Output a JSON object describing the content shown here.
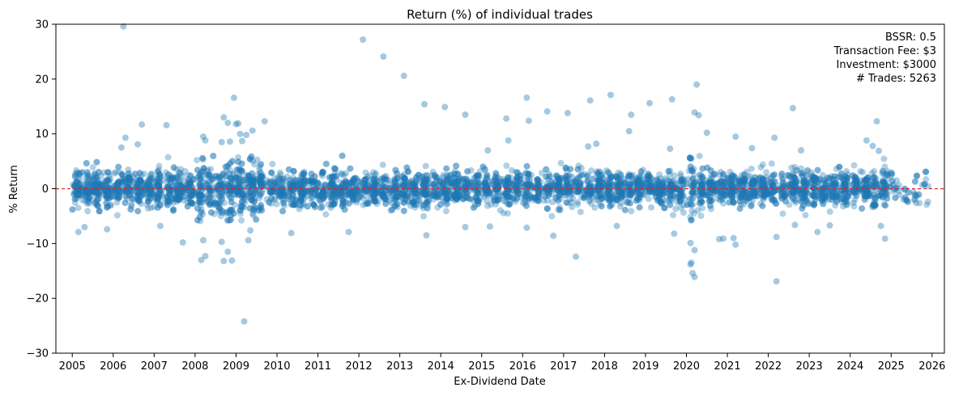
{
  "chart_data": {
    "type": "scatter",
    "title": "Return (%) of individual trades",
    "xlabel": "Ex-Dividend Date",
    "ylabel": "% Return",
    "xlim": [
      2004.6,
      2026.3
    ],
    "ylim": [
      -30,
      30
    ],
    "x_ticks": [
      2005,
      2006,
      2007,
      2008,
      2009,
      2010,
      2011,
      2012,
      2013,
      2014,
      2015,
      2016,
      2017,
      2018,
      2019,
      2020,
      2021,
      2022,
      2023,
      2024,
      2025,
      2026
    ],
    "x_tick_labels": [
      "2005",
      "2006",
      "2007",
      "2008",
      "2009",
      "2010",
      "2011",
      "2012",
      "2013",
      "2014",
      "2015",
      "2016",
      "2017",
      "2018",
      "2019",
      "2020",
      "2021",
      "2022",
      "2023",
      "2024",
      "2025",
      "2026"
    ],
    "y_ticks": [
      -30,
      -20,
      -10,
      0,
      10,
      20,
      30
    ],
    "y_tick_labels": [
      "−30",
      "−20",
      "−10",
      "0",
      "10",
      "20",
      "30"
    ],
    "reference_line": {
      "y": 0,
      "style": "dashed",
      "color": "#d62728"
    },
    "grid": false,
    "point_color": "#1f77b4",
    "point_alpha": 0.35,
    "annotations": [
      "BSSR: 0.5",
      "Transaction Fee: $3",
      "Investment: $3000",
      "# Trades: 5263"
    ],
    "annotation_position": "top-right",
    "dense_band_trades": 5263,
    "outliers": [
      {
        "x": 2006.25,
        "y": 29.6
      },
      {
        "x": 2012.1,
        "y": 27.2
      },
      {
        "x": 2012.6,
        "y": 24.1
      },
      {
        "x": 2013.1,
        "y": 20.6
      },
      {
        "x": 2020.25,
        "y": 19.0
      },
      {
        "x": 2018.15,
        "y": 17.1
      },
      {
        "x": 2016.1,
        "y": 16.6
      },
      {
        "x": 2008.95,
        "y": 16.6
      },
      {
        "x": 2019.65,
        "y": 16.3
      },
      {
        "x": 2017.65,
        "y": 16.1
      },
      {
        "x": 2019.1,
        "y": 15.6
      },
      {
        "x": 2013.6,
        "y": 15.4
      },
      {
        "x": 2014.1,
        "y": 14.9
      },
      {
        "x": 2022.6,
        "y": 14.7
      },
      {
        "x": 2016.6,
        "y": 14.1
      },
      {
        "x": 2020.2,
        "y": 13.9
      },
      {
        "x": 2017.1,
        "y": 13.8
      },
      {
        "x": 2014.6,
        "y": 13.5
      },
      {
        "x": 2018.65,
        "y": 13.5
      },
      {
        "x": 2020.3,
        "y": 13.4
      },
      {
        "x": 2008.7,
        "y": 13.0
      },
      {
        "x": 2015.6,
        "y": 12.8
      },
      {
        "x": 2016.15,
        "y": 12.4
      },
      {
        "x": 2009.7,
        "y": 12.3
      },
      {
        "x": 2024.65,
        "y": 12.3
      },
      {
        "x": 2008.8,
        "y": 12.0
      },
      {
        "x": 2009.05,
        "y": 11.9
      },
      {
        "x": 2009.0,
        "y": 11.8
      },
      {
        "x": 2006.7,
        "y": 11.7
      },
      {
        "x": 2007.3,
        "y": 11.6
      },
      {
        "x": 2009.4,
        "y": 10.6
      },
      {
        "x": 2018.6,
        "y": 10.5
      },
      {
        "x": 2020.5,
        "y": 10.2
      },
      {
        "x": 2009.1,
        "y": 10.0
      },
      {
        "x": 2009.25,
        "y": 9.8
      },
      {
        "x": 2008.2,
        "y": 9.5
      },
      {
        "x": 2021.2,
        "y": 9.5
      },
      {
        "x": 2022.15,
        "y": 9.3
      },
      {
        "x": 2006.3,
        "y": 9.3
      },
      {
        "x": 2024.4,
        "y": 8.8
      },
      {
        "x": 2008.25,
        "y": 8.8
      },
      {
        "x": 2015.65,
        "y": 8.8
      },
      {
        "x": 2009.15,
        "y": 8.7
      },
      {
        "x": 2008.65,
        "y": 8.5
      },
      {
        "x": 2017.8,
        "y": 8.2
      },
      {
        "x": 2006.6,
        "y": 8.1
      },
      {
        "x": 2008.85,
        "y": 8.6
      },
      {
        "x": 2024.55,
        "y": 7.8
      },
      {
        "x": 2017.6,
        "y": 7.7
      },
      {
        "x": 2006.2,
        "y": 7.5
      },
      {
        "x": 2021.6,
        "y": 7.4
      },
      {
        "x": 2019.6,
        "y": 7.3
      },
      {
        "x": 2022.8,
        "y": 7.0
      },
      {
        "x": 2024.7,
        "y": 6.9
      },
      {
        "x": 2015.15,
        "y": 7.0
      },
      {
        "x": 2009.2,
        "y": -24.2
      },
      {
        "x": 2022.2,
        "y": -16.9
      },
      {
        "x": 2020.2,
        "y": -16.1
      },
      {
        "x": 2020.15,
        "y": -15.4
      },
      {
        "x": 2020.1,
        "y": -13.8
      },
      {
        "x": 2020.12,
        "y": -13.5
      },
      {
        "x": 2008.7,
        "y": -13.2
      },
      {
        "x": 2008.9,
        "y": -13.1
      },
      {
        "x": 2008.15,
        "y": -13.0
      },
      {
        "x": 2017.3,
        "y": -12.4
      },
      {
        "x": 2008.25,
        "y": -12.3
      },
      {
        "x": 2008.8,
        "y": -11.5
      },
      {
        "x": 2020.2,
        "y": -11.2
      },
      {
        "x": 2021.2,
        "y": -10.2
      },
      {
        "x": 2020.1,
        "y": -9.9
      },
      {
        "x": 2007.7,
        "y": -9.8
      },
      {
        "x": 2008.65,
        "y": -9.7
      },
      {
        "x": 2008.2,
        "y": -9.4
      },
      {
        "x": 2009.3,
        "y": -9.4
      },
      {
        "x": 2020.9,
        "y": -9.1
      },
      {
        "x": 2024.85,
        "y": -9.1
      },
      {
        "x": 2021.15,
        "y": -9.0
      },
      {
        "x": 2020.8,
        "y": -9.2
      },
      {
        "x": 2022.2,
        "y": -8.8
      },
      {
        "x": 2013.65,
        "y": -8.5
      },
      {
        "x": 2016.75,
        "y": -8.6
      },
      {
        "x": 2019.7,
        "y": -8.2
      },
      {
        "x": 2010.35,
        "y": -8.1
      },
      {
        "x": 2005.15,
        "y": -7.9
      },
      {
        "x": 2011.75,
        "y": -7.9
      },
      {
        "x": 2023.2,
        "y": -7.9
      },
      {
        "x": 2009.35,
        "y": -7.6
      },
      {
        "x": 2005.85,
        "y": -7.4
      },
      {
        "x": 2005.3,
        "y": -7.0
      },
      {
        "x": 2014.6,
        "y": -7.0
      },
      {
        "x": 2015.2,
        "y": -6.9
      },
      {
        "x": 2016.1,
        "y": -7.1
      },
      {
        "x": 2018.3,
        "y": -6.8
      },
      {
        "x": 2022.65,
        "y": -6.6
      },
      {
        "x": 2024.75,
        "y": -6.8
      },
      {
        "x": 2023.5,
        "y": -6.7
      },
      {
        "x": 2007.15,
        "y": -6.8
      }
    ]
  }
}
